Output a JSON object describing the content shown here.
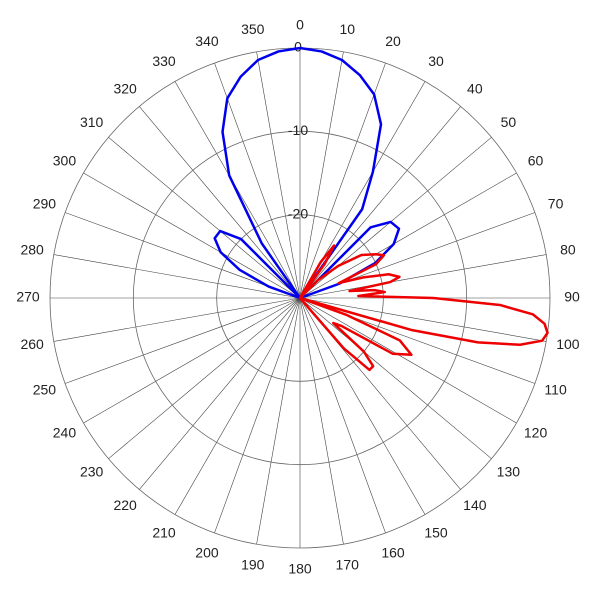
{
  "chart_data": {
    "type": "polar",
    "rlim": [
      -30,
      0
    ],
    "rticks": [
      -20,
      -10,
      0
    ],
    "thetaticks": [
      0,
      10,
      20,
      30,
      40,
      50,
      60,
      70,
      80,
      90,
      100,
      110,
      120,
      130,
      140,
      150,
      160,
      170,
      180,
      190,
      200,
      210,
      220,
      230,
      240,
      250,
      260,
      270,
      280,
      290,
      300,
      310,
      320,
      330,
      340,
      350
    ],
    "series": [
      {
        "color": "#0000ee",
        "theta": [
          0,
          5,
          10,
          15,
          20,
          25,
          30,
          35,
          40,
          45,
          50,
          55,
          60,
          65,
          70,
          75,
          80,
          280,
          285,
          290,
          295,
          300,
          305,
          310,
          315,
          320,
          325,
          330,
          335,
          340,
          345,
          350,
          355,
          360
        ],
        "values": [
          0,
          -0.3,
          -1,
          -2.3,
          -4,
          -7,
          -12.5,
          -17,
          -30,
          -18,
          -15.8,
          -15.5,
          -17,
          -20,
          -25,
          -30,
          -30,
          -30,
          -30,
          -26,
          -22,
          -19,
          -17.5,
          -17.5,
          -20,
          -30,
          -22,
          -13,
          -8,
          -4.5,
          -2.5,
          -1,
          -0.3,
          0
        ]
      },
      {
        "color": "#ee0000",
        "theta": [
          0,
          25,
          30,
          33,
          36,
          40,
          45,
          50,
          55,
          60,
          63,
          66,
          69,
          72,
          75,
          78,
          80,
          82,
          84,
          86,
          88,
          90,
          92,
          94,
          96,
          98,
          100,
          102,
          104,
          106,
          108,
          110,
          113,
          117,
          121,
          124,
          127,
          130,
          133,
          136,
          139,
          142,
          145,
          360
        ],
        "values": [
          -30,
          -30,
          -25,
          -22.5,
          -25,
          -30,
          -27,
          -24,
          -21,
          -19.5,
          -18.7,
          -20,
          -25,
          -22,
          -19,
          -17.8,
          -19,
          -24,
          -21,
          -19.8,
          -23,
          -14,
          -6,
          -2,
          -0.5,
          0,
          -0.5,
          -3,
          -8,
          -16,
          -30,
          -24,
          -17,
          -15,
          -17,
          -24,
          -25,
          -20,
          -18,
          -18,
          -22,
          -30,
          -30,
          -30
        ]
      }
    ]
  }
}
